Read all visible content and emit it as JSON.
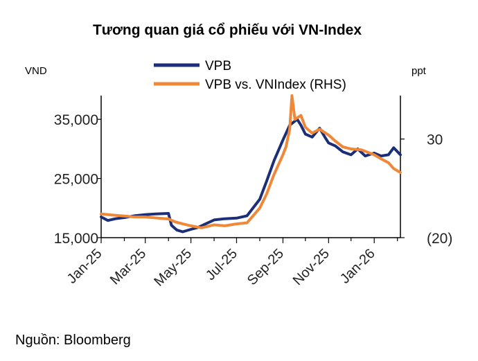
{
  "colors": {
    "vpb": "#1b2f78",
    "rel": "#f0883a",
    "axis": "#000000"
  },
  "chart_data": {
    "type": "line",
    "title": "Tương quan giá cổ phiếu với VN-Index",
    "left_unit": "VND",
    "right_unit": "ppt",
    "source": "Nguồn: Bloomberg",
    "x_tick_labels": [
      "Jan-25",
      "Mar-25",
      "May-25",
      "Jul-25",
      "Sep-25",
      "Nov-25",
      "Jan-26"
    ],
    "x_range": [
      "2025-01-01",
      "2026-02-05"
    ],
    "y_left": {
      "range": [
        15000,
        39000
      ],
      "ticks": [
        15000,
        25000,
        35000
      ],
      "tick_labels": [
        "15,000",
        "25,000",
        "35,000"
      ]
    },
    "y_right": {
      "range": [
        -20,
        52
      ],
      "ticks": [
        -20,
        30
      ],
      "tick_labels": [
        "(20)",
        "30"
      ]
    },
    "series": [
      {
        "name": "VPB",
        "axis": "left",
        "points": [
          [
            "2025-01-01",
            18500
          ],
          [
            "2025-01-10",
            17900
          ],
          [
            "2025-01-20",
            18200
          ],
          [
            "2025-02-01",
            18400
          ],
          [
            "2025-02-15",
            18700
          ],
          [
            "2025-03-01",
            18900
          ],
          [
            "2025-03-15",
            19000
          ],
          [
            "2025-04-01",
            19100
          ],
          [
            "2025-04-05",
            17100
          ],
          [
            "2025-04-12",
            16300
          ],
          [
            "2025-04-20",
            16000
          ],
          [
            "2025-05-01",
            16400
          ],
          [
            "2025-05-10",
            16700
          ],
          [
            "2025-05-20",
            17300
          ],
          [
            "2025-06-01",
            18000
          ],
          [
            "2025-06-15",
            18200
          ],
          [
            "2025-07-01",
            18300
          ],
          [
            "2025-07-15",
            18700
          ],
          [
            "2025-08-01",
            21500
          ],
          [
            "2025-08-10",
            24500
          ],
          [
            "2025-08-20",
            28000
          ],
          [
            "2025-09-01",
            31500
          ],
          [
            "2025-09-10",
            34000
          ],
          [
            "2025-09-20",
            35000
          ],
          [
            "2025-09-25",
            34000
          ],
          [
            "2025-10-01",
            32500
          ],
          [
            "2025-10-10",
            32000
          ],
          [
            "2025-10-20",
            33500
          ],
          [
            "2025-10-27",
            32000
          ],
          [
            "2025-11-01",
            31000
          ],
          [
            "2025-11-10",
            30500
          ],
          [
            "2025-11-20",
            29500
          ],
          [
            "2025-12-01",
            29000
          ],
          [
            "2025-12-10",
            30000
          ],
          [
            "2025-12-20",
            28800
          ],
          [
            "2026-01-01",
            29300
          ],
          [
            "2026-01-10",
            28800
          ],
          [
            "2026-01-20",
            29000
          ],
          [
            "2026-01-27",
            30200
          ],
          [
            "2026-02-05",
            29000
          ]
        ]
      },
      {
        "name": "VPB vs. VNIndex (RHS)",
        "axis": "right",
        "points": [
          [
            "2025-01-01",
            -8
          ],
          [
            "2025-01-15",
            -8.5
          ],
          [
            "2025-02-01",
            -9
          ],
          [
            "2025-02-15",
            -9.5
          ],
          [
            "2025-03-01",
            -9.5
          ],
          [
            "2025-03-15",
            -10
          ],
          [
            "2025-04-01",
            -10.5
          ],
          [
            "2025-04-10",
            -12
          ],
          [
            "2025-04-20",
            -13
          ],
          [
            "2025-05-01",
            -14
          ],
          [
            "2025-05-15",
            -15
          ],
          [
            "2025-06-01",
            -13.5
          ],
          [
            "2025-06-15",
            -14
          ],
          [
            "2025-07-01",
            -13
          ],
          [
            "2025-07-15",
            -12.5
          ],
          [
            "2025-08-01",
            -5
          ],
          [
            "2025-08-10",
            2
          ],
          [
            "2025-08-20",
            12
          ],
          [
            "2025-09-01",
            22
          ],
          [
            "2025-09-05",
            26
          ],
          [
            "2025-09-10",
            35
          ],
          [
            "2025-09-13",
            52
          ],
          [
            "2025-09-17",
            40
          ],
          [
            "2025-09-25",
            42
          ],
          [
            "2025-10-01",
            36
          ],
          [
            "2025-10-10",
            33
          ],
          [
            "2025-10-20",
            35
          ],
          [
            "2025-11-01",
            32
          ],
          [
            "2025-11-10",
            29
          ],
          [
            "2025-11-20",
            26
          ],
          [
            "2025-12-01",
            25
          ],
          [
            "2025-12-15",
            24.5
          ],
          [
            "2026-01-01",
            22
          ],
          [
            "2026-01-10",
            20
          ],
          [
            "2026-01-20",
            18
          ],
          [
            "2026-01-27",
            15
          ],
          [
            "2026-02-05",
            13
          ]
        ]
      }
    ],
    "grid": false,
    "legend_position": "top-center"
  }
}
